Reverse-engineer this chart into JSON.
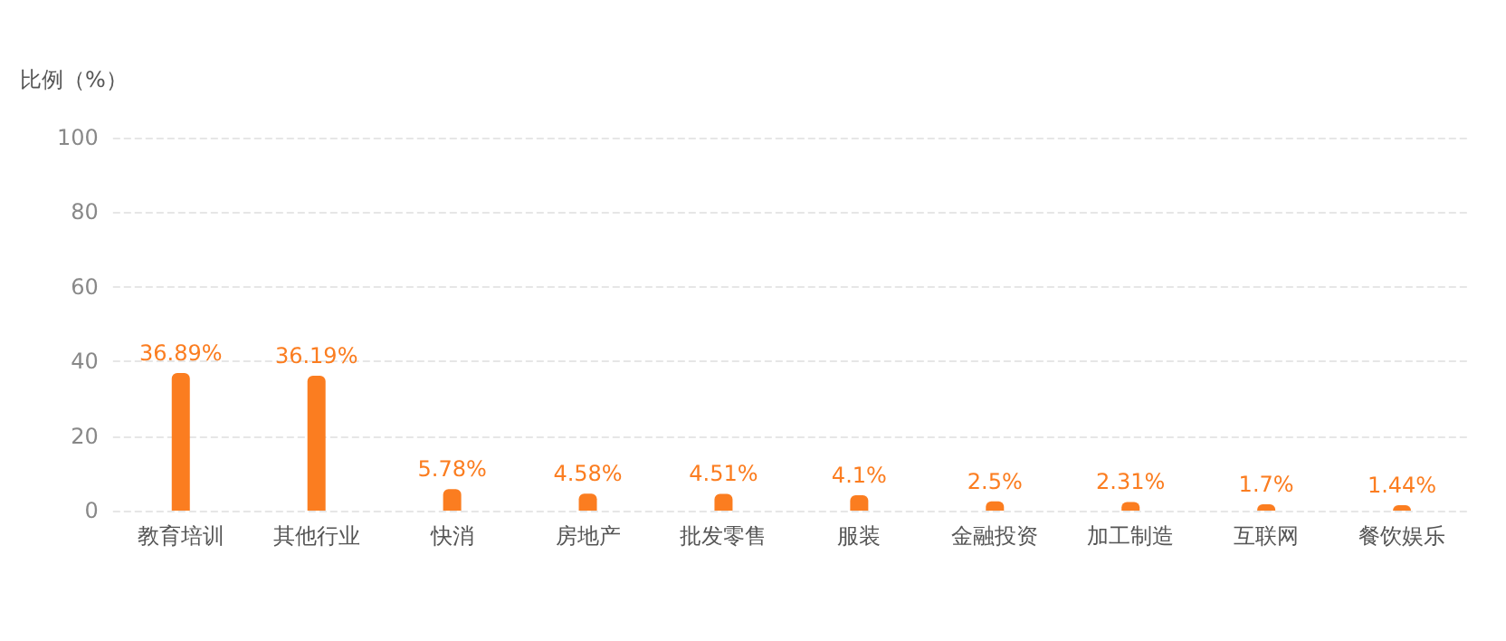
{
  "chart_data": {
    "type": "bar",
    "ylabel": "比例（%）",
    "categories": [
      "教育培训",
      "其他行业",
      "快消",
      "房地产",
      "批发零售",
      "服装",
      "金融投资",
      "加工制造",
      "互联网",
      "餐饮娱乐"
    ],
    "values": [
      36.89,
      36.19,
      5.78,
      4.58,
      4.51,
      4.1,
      2.5,
      2.31,
      1.7,
      1.44
    ],
    "value_labels": [
      "36.89%",
      "36.19%",
      "5.78%",
      "4.58%",
      "4.51%",
      "4.1%",
      "2.5%",
      "2.31%",
      "1.7%",
      "1.44%"
    ],
    "color": "#fb7d20",
    "ylim": [
      0,
      100
    ],
    "yticks": [
      0,
      20,
      40,
      60,
      80,
      100
    ],
    "grid": "y"
  }
}
